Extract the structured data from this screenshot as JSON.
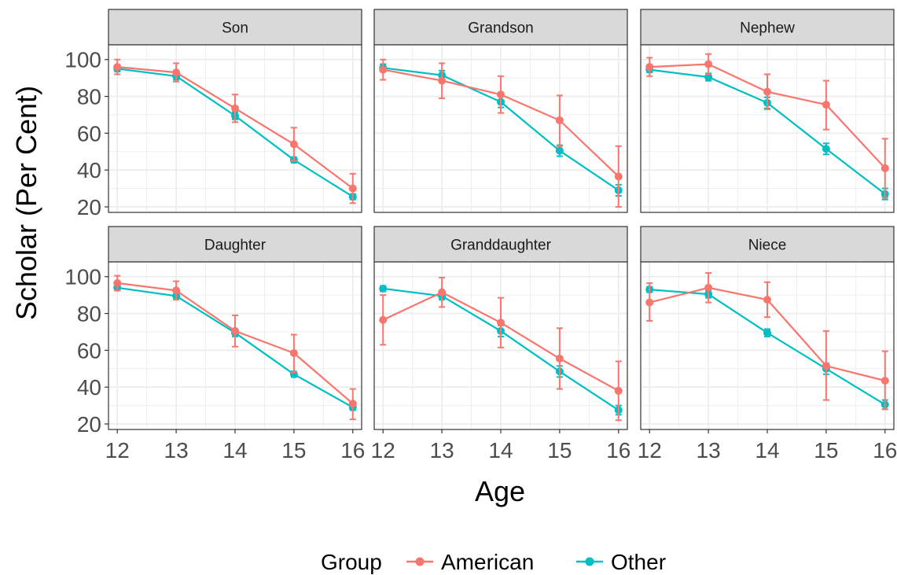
{
  "chart_data": {
    "type": "line",
    "xlabel": "Age",
    "ylabel": "Scholar (Per Cent)",
    "x": [
      12,
      13,
      14,
      15,
      16
    ],
    "xlim": [
      11.85,
      16.15
    ],
    "ylim": [
      17,
      108
    ],
    "yticks": [
      20,
      40,
      60,
      80,
      100
    ],
    "grid": true,
    "error_bars": true,
    "facet_rows": 2,
    "facet_cols": 3,
    "colors": {
      "American": "#F8766D",
      "Other": "#00BFC4"
    },
    "legend": {
      "title": "Group",
      "position": "bottom",
      "entries": [
        "American",
        "Other"
      ]
    },
    "facets": [
      {
        "title": "Son",
        "series": [
          {
            "name": "American",
            "values": [
              96,
              93,
              73.5,
              54,
              30
            ],
            "lower": [
              92,
              88,
              66,
              45,
              22
            ],
            "upper": [
              100,
              98,
              81,
              63,
              38
            ]
          },
          {
            "name": "Other",
            "values": [
              95,
              91,
              69.5,
              45.5,
              25.5
            ],
            "lower": [
              93.5,
              89,
              67.5,
              44,
              24
            ],
            "upper": [
              96.5,
              93,
              71.5,
              47,
              27
            ]
          }
        ]
      },
      {
        "title": "Grandson",
        "series": [
          {
            "name": "American",
            "values": [
              94.5,
              88.5,
              81,
              67,
              36.5
            ],
            "lower": [
              89,
              79,
              71,
              53,
              20
            ],
            "upper": [
              100,
              98,
              91,
              80.5,
              53
            ]
          },
          {
            "name": "Other",
            "values": [
              95.5,
              91.5,
              77,
              50.5,
              29
            ],
            "lower": [
              93.5,
              89,
              74,
              47.5,
              26
            ],
            "upper": [
              97.5,
              94,
              80,
              53.5,
              32
            ]
          }
        ]
      },
      {
        "title": "Nephew",
        "series": [
          {
            "name": "American",
            "values": [
              96,
              97.5,
              82.5,
              75.5,
              41
            ],
            "lower": [
              91,
              92,
              73,
              62,
              25
            ],
            "upper": [
              101,
              103,
              92,
              88.5,
              57
            ]
          },
          {
            "name": "Other",
            "values": [
              94.5,
              90.5,
              76.5,
              51.5,
              27
            ],
            "lower": [
              93,
              88.5,
              73.5,
              48.5,
              24
            ],
            "upper": [
              96,
              92.5,
              79.5,
              54.5,
              30
            ]
          }
        ]
      },
      {
        "title": "Daughter",
        "series": [
          {
            "name": "American",
            "values": [
              96.5,
              92.5,
              70.5,
              58.5,
              31
            ],
            "lower": [
              92.5,
              87.5,
              62,
              48,
              22.5
            ],
            "upper": [
              100.5,
              97.5,
              79,
              68.5,
              39
            ]
          },
          {
            "name": "Other",
            "values": [
              94,
              89.5,
              69.5,
              47,
              29
            ],
            "lower": [
              92.5,
              87.5,
              67.5,
              45.5,
              27.5
            ],
            "upper": [
              95.5,
              91.5,
              71.5,
              48.5,
              30.5
            ]
          }
        ]
      },
      {
        "title": "Granddaughter",
        "series": [
          {
            "name": "American",
            "values": [
              76.5,
              91.5,
              75,
              55.5,
              38
            ],
            "lower": [
              63,
              83.5,
              61.5,
              39,
              22
            ],
            "upper": [
              90,
              99.5,
              88.5,
              72,
              54
            ]
          },
          {
            "name": "Other",
            "values": [
              93.5,
              89.5,
              70.5,
              48.5,
              27.5
            ],
            "lower": [
              92,
              87.5,
              67.5,
              45.5,
              25
            ],
            "upper": [
              95,
              91.5,
              73.5,
              51.5,
              30
            ]
          }
        ]
      },
      {
        "title": "Niece",
        "series": [
          {
            "name": "American",
            "values": [
              86,
              94,
              87.5,
              51.5,
              43.5
            ],
            "lower": [
              76,
              86,
              78,
              33,
              28
            ],
            "upper": [
              96.5,
              102,
              97,
              70.5,
              59.5
            ]
          },
          {
            "name": "Other",
            "values": [
              93,
              90.5,
              69.5,
              50,
              30.5
            ],
            "lower": [
              91.5,
              88.5,
              67.5,
              47,
              28
            ],
            "upper": [
              94.5,
              92.5,
              71.5,
              53,
              33
            ]
          }
        ]
      }
    ]
  }
}
